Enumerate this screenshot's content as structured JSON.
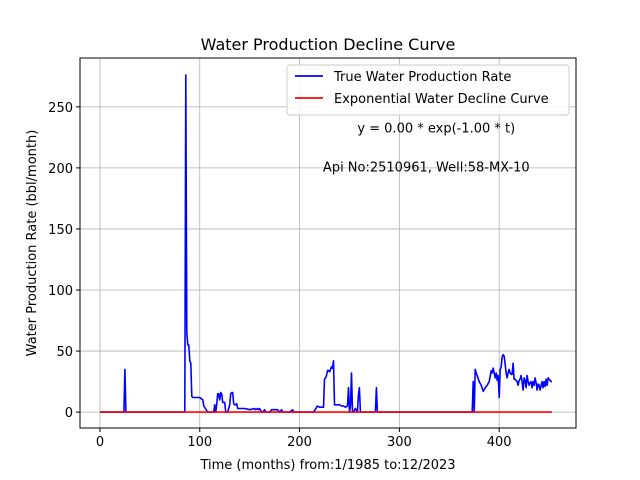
{
  "chart_data": {
    "type": "line",
    "title": "Water Production Decline Curve",
    "xlabel": "Time (months) from:1/1985 to:12/2023",
    "ylabel": "Water Production Rate (bbl/month)",
    "xlim": [
      -20,
      477
    ],
    "ylim": [
      -13,
      290
    ],
    "xticks": [
      0,
      100,
      200,
      300,
      400
    ],
    "yticks": [
      0,
      50,
      100,
      150,
      200,
      250
    ],
    "grid": true,
    "legend_position": "top-right",
    "annotations": [
      {
        "text": "y = 0.00 * exp(-1.00 * t)",
        "x": 337,
        "y": 229
      },
      {
        "text": "Api No:2510961, Well:58-MX-10",
        "x": 327,
        "y": 197
      }
    ],
    "series": [
      {
        "name": "True Water Production Rate",
        "color": "#0000ff",
        "x": [
          0,
          24,
          25,
          26,
          27,
          85,
          86,
          87,
          88,
          89,
          90,
          91,
          92,
          93,
          98,
          100,
          103,
          104,
          108,
          114,
          115,
          116,
          117,
          118,
          119,
          120,
          121,
          122,
          123,
          124,
          125,
          126,
          127,
          128,
          130,
          131,
          132,
          133,
          134,
          135,
          136,
          137,
          138,
          141,
          145,
          150,
          155,
          156,
          158,
          159,
          160,
          162,
          163,
          165,
          166,
          170,
          172,
          178,
          180,
          182,
          183,
          185,
          190,
          193,
          194,
          195,
          200,
          214,
          218,
          220,
          222,
          224,
          225,
          226,
          227,
          228,
          229,
          230,
          231,
          232,
          233,
          234,
          235,
          236,
          237,
          238,
          240,
          242,
          244,
          246,
          248,
          249,
          250,
          251,
          252,
          253,
          254,
          256,
          258,
          259,
          260,
          261,
          262,
          263,
          264,
          276,
          277,
          278,
          279,
          372,
          373,
          374,
          375,
          376,
          377,
          378,
          380,
          382,
          384,
          386,
          388,
          390,
          392,
          393,
          394,
          396,
          397,
          398,
          399,
          400,
          401,
          402,
          403,
          404,
          405,
          406,
          407,
          408,
          409,
          410,
          411,
          412,
          413,
          414,
          415,
          416,
          417,
          418,
          419,
          420,
          421,
          422,
          423,
          424,
          425,
          426,
          427,
          428,
          429,
          430,
          431,
          432,
          433,
          434,
          435,
          436,
          437,
          438,
          439,
          440,
          441,
          442,
          443,
          444,
          445,
          446,
          447,
          448,
          449,
          450,
          451,
          452,
          453
        ],
        "values": [
          0,
          0,
          35,
          0,
          0,
          0,
          276,
          65,
          55,
          55,
          42,
          40,
          13,
          12,
          12,
          12,
          10,
          5,
          0,
          0,
          6,
          0,
          6,
          15,
          15,
          10,
          16,
          15,
          8,
          8,
          8,
          0,
          0,
          0,
          6,
          15,
          16,
          16,
          7,
          6,
          6,
          7,
          3,
          3,
          3,
          2,
          3,
          2,
          3,
          2,
          3,
          0,
          0,
          2,
          0,
          0,
          2,
          2,
          0,
          2,
          0,
          0,
          0,
          2,
          0,
          0,
          0,
          0,
          5,
          4,
          4,
          4,
          27,
          28,
          30,
          34,
          34,
          33,
          35,
          37,
          36,
          42,
          6,
          6,
          6,
          6,
          6,
          5,
          5,
          4,
          5,
          20,
          0,
          5,
          32,
          0,
          0,
          3,
          0,
          14,
          20,
          0,
          0,
          0,
          0,
          0,
          20,
          0,
          0,
          0,
          0,
          25,
          0,
          35,
          32,
          30,
          25,
          22,
          17,
          20,
          22,
          25,
          34,
          32,
          36,
          28,
          32,
          26,
          30,
          12,
          35,
          37,
          45,
          47,
          46,
          40,
          32,
          28,
          32,
          35,
          32,
          31,
          31,
          40,
          27,
          27,
          26,
          25,
          22,
          26,
          27,
          30,
          25,
          18,
          28,
          26,
          20,
          30,
          25,
          22,
          24,
          25,
          20,
          25,
          22,
          28,
          24,
          18,
          23,
          22,
          18,
          22,
          25,
          20,
          25,
          21,
          27,
          22,
          28,
          27,
          26,
          25,
          25
        ]
      },
      {
        "name": "Exponential Water Decline Curve",
        "color": "#ff0000",
        "x": [
          0,
          453
        ],
        "values": [
          0,
          0
        ]
      }
    ]
  }
}
